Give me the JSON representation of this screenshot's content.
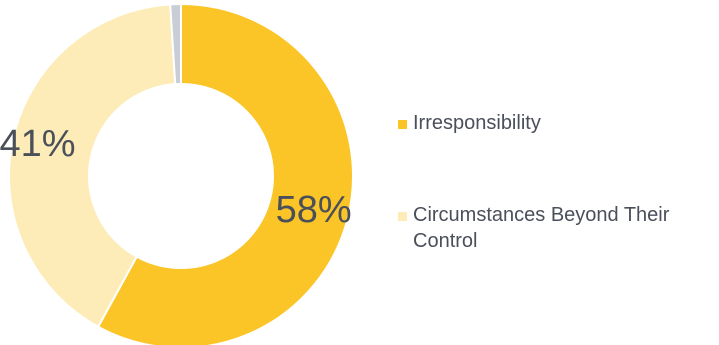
{
  "chart_data": {
    "type": "pie",
    "variant": "donut",
    "slices": [
      {
        "label": "Irresponsibility",
        "value": 58,
        "display": "58%",
        "color": "#fbc527"
      },
      {
        "label": "Circumstances Beyond Their Control",
        "value": 41,
        "display": "41%",
        "color": "#fdecb8"
      },
      {
        "label": "",
        "value": 1,
        "display": "",
        "color": "#c9cdd6"
      }
    ],
    "legend": {
      "position": "right",
      "entries": [
        {
          "label": "Irresponsibility",
          "color": "#fbc527"
        },
        {
          "label": "Circumstances Beyond Their Control",
          "color": "#fdecb8"
        }
      ]
    }
  }
}
